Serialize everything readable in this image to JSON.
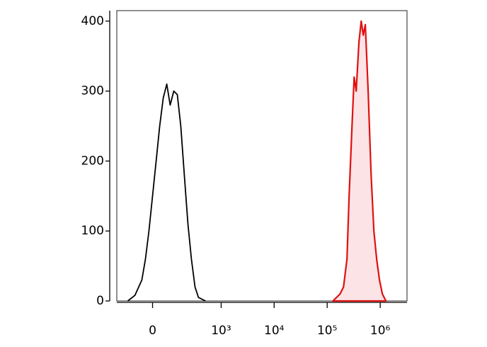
{
  "chart_data": {
    "type": "histogram-overlay",
    "x_scale": "biexponential",
    "xlim": [
      -230,
      3200000
    ],
    "xticks": [
      {
        "value": 0,
        "label": "0"
      },
      {
        "value": 1000,
        "label": "10³"
      },
      {
        "value": 10000,
        "label": "10⁴"
      },
      {
        "value": 100000,
        "label": "10⁵"
      },
      {
        "value": 1000000,
        "label": "10⁶"
      }
    ],
    "ylim": [
      0,
      415
    ],
    "yticks": [
      0,
      100,
      200,
      300,
      400
    ],
    "series": [
      {
        "color": "#000000",
        "filled": false,
        "x": [
          -132,
          -86,
          -49,
          -32,
          -16,
          0,
          16,
          32,
          49,
          67,
          86,
          108,
          132,
          159,
          190,
          226,
          266,
          314,
          368,
          505
        ],
        "values": [
          0,
          8,
          30,
          60,
          100,
          150,
          200,
          250,
          290,
          310,
          280,
          300,
          295,
          250,
          180,
          110,
          60,
          20,
          5,
          0
        ]
      },
      {
        "color": "#e01010",
        "fill": "#fce4e6",
        "filled": true,
        "x": [
          128000,
          175000,
          203000,
          236000,
          259000,
          294000,
          322000,
          352000,
          397000,
          438000,
          479000,
          524000,
          592000,
          673000,
          760000,
          857000,
          967000,
          1100000,
          1280000
        ],
        "values": [
          0,
          10,
          20,
          60,
          150,
          250,
          320,
          300,
          370,
          400,
          380,
          395,
          300,
          180,
          100,
          60,
          30,
          10,
          0
        ]
      }
    ]
  }
}
